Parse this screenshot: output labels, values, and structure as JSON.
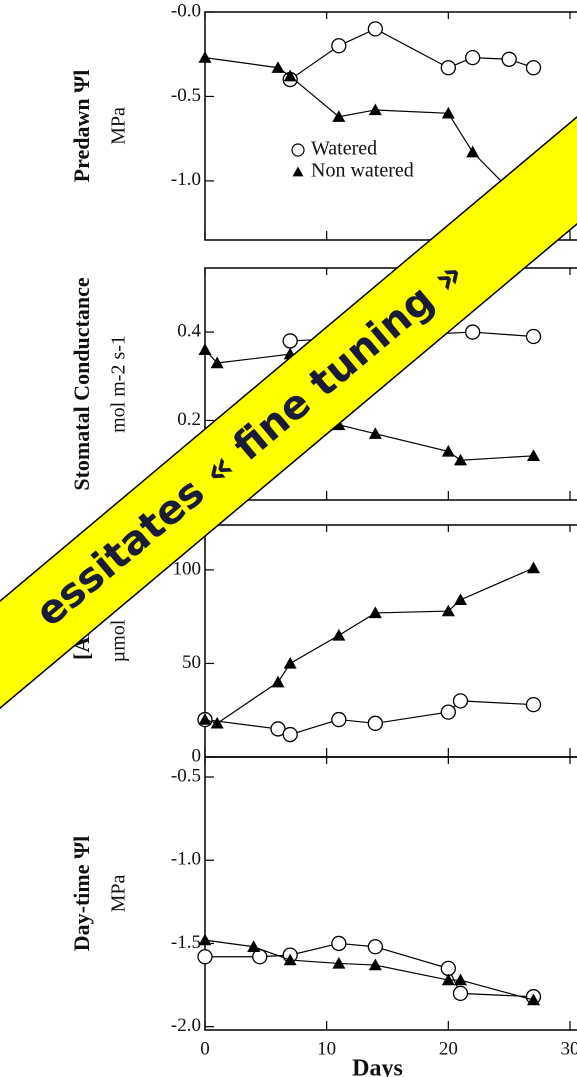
{
  "chart_data": [
    {
      "type": "line",
      "y_label": "Predawn Ψl",
      "y_unit": "MPa",
      "xlim": [
        0,
        30
      ],
      "xticks": [
        0,
        10,
        20,
        30
      ],
      "ylim": [
        -1.35,
        0
      ],
      "yticks": [
        {
          "value": 0,
          "label": "-0.0"
        },
        -0.5,
        {
          "value": -1.0,
          "label": "-1.0"
        }
      ],
      "legend": "center",
      "series": [
        {
          "name": "Watered",
          "marker": "circle",
          "color": "#000000",
          "x": [
            7,
            11,
            14,
            20,
            22,
            25,
            27
          ],
          "values": [
            -0.4,
            -0.2,
            -0.1,
            -0.33,
            -0.27,
            -0.28,
            -0.33
          ]
        },
        {
          "name": "Non watered",
          "marker": "triangle",
          "color": "#000000",
          "x": [
            0,
            6,
            7,
            11,
            14,
            20,
            22,
            25
          ],
          "values": [
            -0.27,
            -0.33,
            -0.38,
            -0.62,
            -0.58,
            -0.6,
            -0.83,
            -1.05
          ]
        }
      ]
    },
    {
      "type": "line",
      "y_label": "Stomatal Conductance",
      "y_unit": "mol m-2 s-1",
      "xlim": [
        0,
        30
      ],
      "xticks": [
        0,
        10,
        20,
        30
      ],
      "ylim": [
        0.02,
        0.545
      ],
      "yticks": [
        0.2,
        0.4
      ],
      "series": [
        {
          "marker": "circle",
          "color": "#000000",
          "x": [
            7,
            22,
            27
          ],
          "values": [
            0.38,
            0.4,
            0.39
          ]
        },
        {
          "marker": "triangle",
          "color": "#000000",
          "x": [
            0,
            1,
            7,
            11,
            14,
            20,
            21,
            27
          ],
          "values": [
            0.36,
            0.33,
            0.35,
            0.19,
            0.17,
            0.13,
            0.11,
            0.12
          ]
        }
      ]
    },
    {
      "type": "line",
      "y_label": "[AB",
      "y_unit": "µmol",
      "xlim": [
        0,
        30
      ],
      "xticks": [
        0,
        10,
        20,
        30
      ],
      "ylim": [
        0,
        124
      ],
      "yticks": [
        0,
        50,
        100
      ],
      "series": [
        {
          "marker": "circle",
          "color": "#000000",
          "x": [
            0,
            6,
            7,
            11,
            14,
            20,
            21,
            27
          ],
          "values": [
            20,
            15,
            12,
            20,
            18,
            24,
            30,
            28
          ]
        },
        {
          "marker": "triangle",
          "color": "#000000",
          "x": [
            0,
            1,
            6,
            7,
            11,
            14,
            20,
            21,
            27
          ],
          "values": [
            20,
            18,
            40,
            50,
            65,
            77,
            78,
            84,
            101
          ]
        }
      ]
    },
    {
      "type": "line",
      "y_label": "Day-time Ψl",
      "y_unit": "MPa",
      "x_label": "Days",
      "xlim": [
        0,
        30
      ],
      "xticks": [
        0,
        10,
        20,
        30
      ],
      "show_xtick_labels": true,
      "ylim": [
        -2.02,
        -0.38
      ],
      "yticks": [
        -0.5,
        {
          "value": -1.0,
          "label": "-1.0"
        },
        -1.5,
        {
          "value": -2.0,
          "label": "-2.0"
        }
      ],
      "series": [
        {
          "marker": "circle",
          "color": "#000000",
          "x": [
            0,
            4.5,
            7,
            11,
            14,
            20,
            21,
            27
          ],
          "values": [
            -1.58,
            -1.58,
            -1.57,
            -1.5,
            -1.52,
            -1.65,
            -1.8,
            -1.82
          ]
        },
        {
          "marker": "triangle",
          "color": "#000000",
          "x": [
            0,
            4,
            7,
            11,
            14,
            20,
            21,
            27
          ],
          "values": [
            -1.48,
            -1.52,
            -1.6,
            -1.62,
            -1.63,
            -1.72,
            -1.72,
            -1.84
          ]
        }
      ]
    }
  ],
  "banner": {
    "text": "essitates « fine tuning »",
    "color": "#ffff00"
  }
}
